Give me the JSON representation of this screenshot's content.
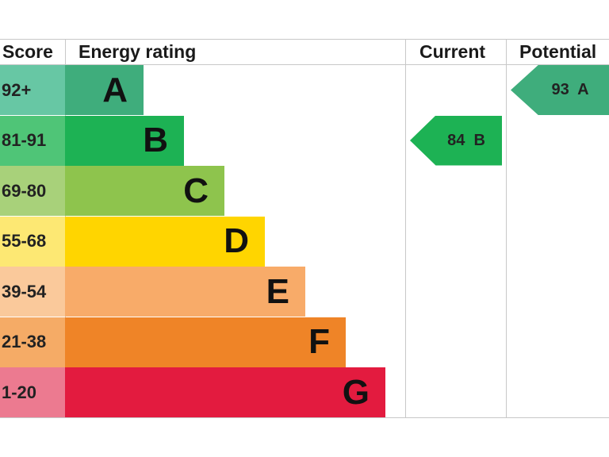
{
  "headers": {
    "score": "Score",
    "energy_rating": "Energy rating",
    "current": "Current",
    "potential": "Potential"
  },
  "chart_data": {
    "type": "bar",
    "title": "",
    "bands": [
      {
        "score": "92+",
        "letter": "A",
        "color": "#3fad7c",
        "score_bg": "#67c7a4"
      },
      {
        "score": "81-91",
        "letter": "B",
        "color": "#1db254",
        "score_bg": "#4fc577"
      },
      {
        "score": "69-80",
        "letter": "C",
        "color": "#8ec44d",
        "score_bg": "#a8d17a"
      },
      {
        "score": "55-68",
        "letter": "D",
        "color": "#ffd500",
        "score_bg": "#fde873"
      },
      {
        "score": "39-54",
        "letter": "E",
        "color": "#f8ab69",
        "score_bg": "#fac99b"
      },
      {
        "score": "21-38",
        "letter": "F",
        "color": "#ef8427",
        "score_bg": "#f5ab66"
      },
      {
        "score": "1-20",
        "letter": "G",
        "color": "#e31b3f",
        "score_bg": "#ec7a90"
      }
    ],
    "current": {
      "value": 84,
      "letter": "B",
      "label": "84  B",
      "color": "#1db254"
    },
    "potential": {
      "value": 93,
      "letter": "A",
      "label": "93  A",
      "color": "#3fad7c"
    }
  }
}
